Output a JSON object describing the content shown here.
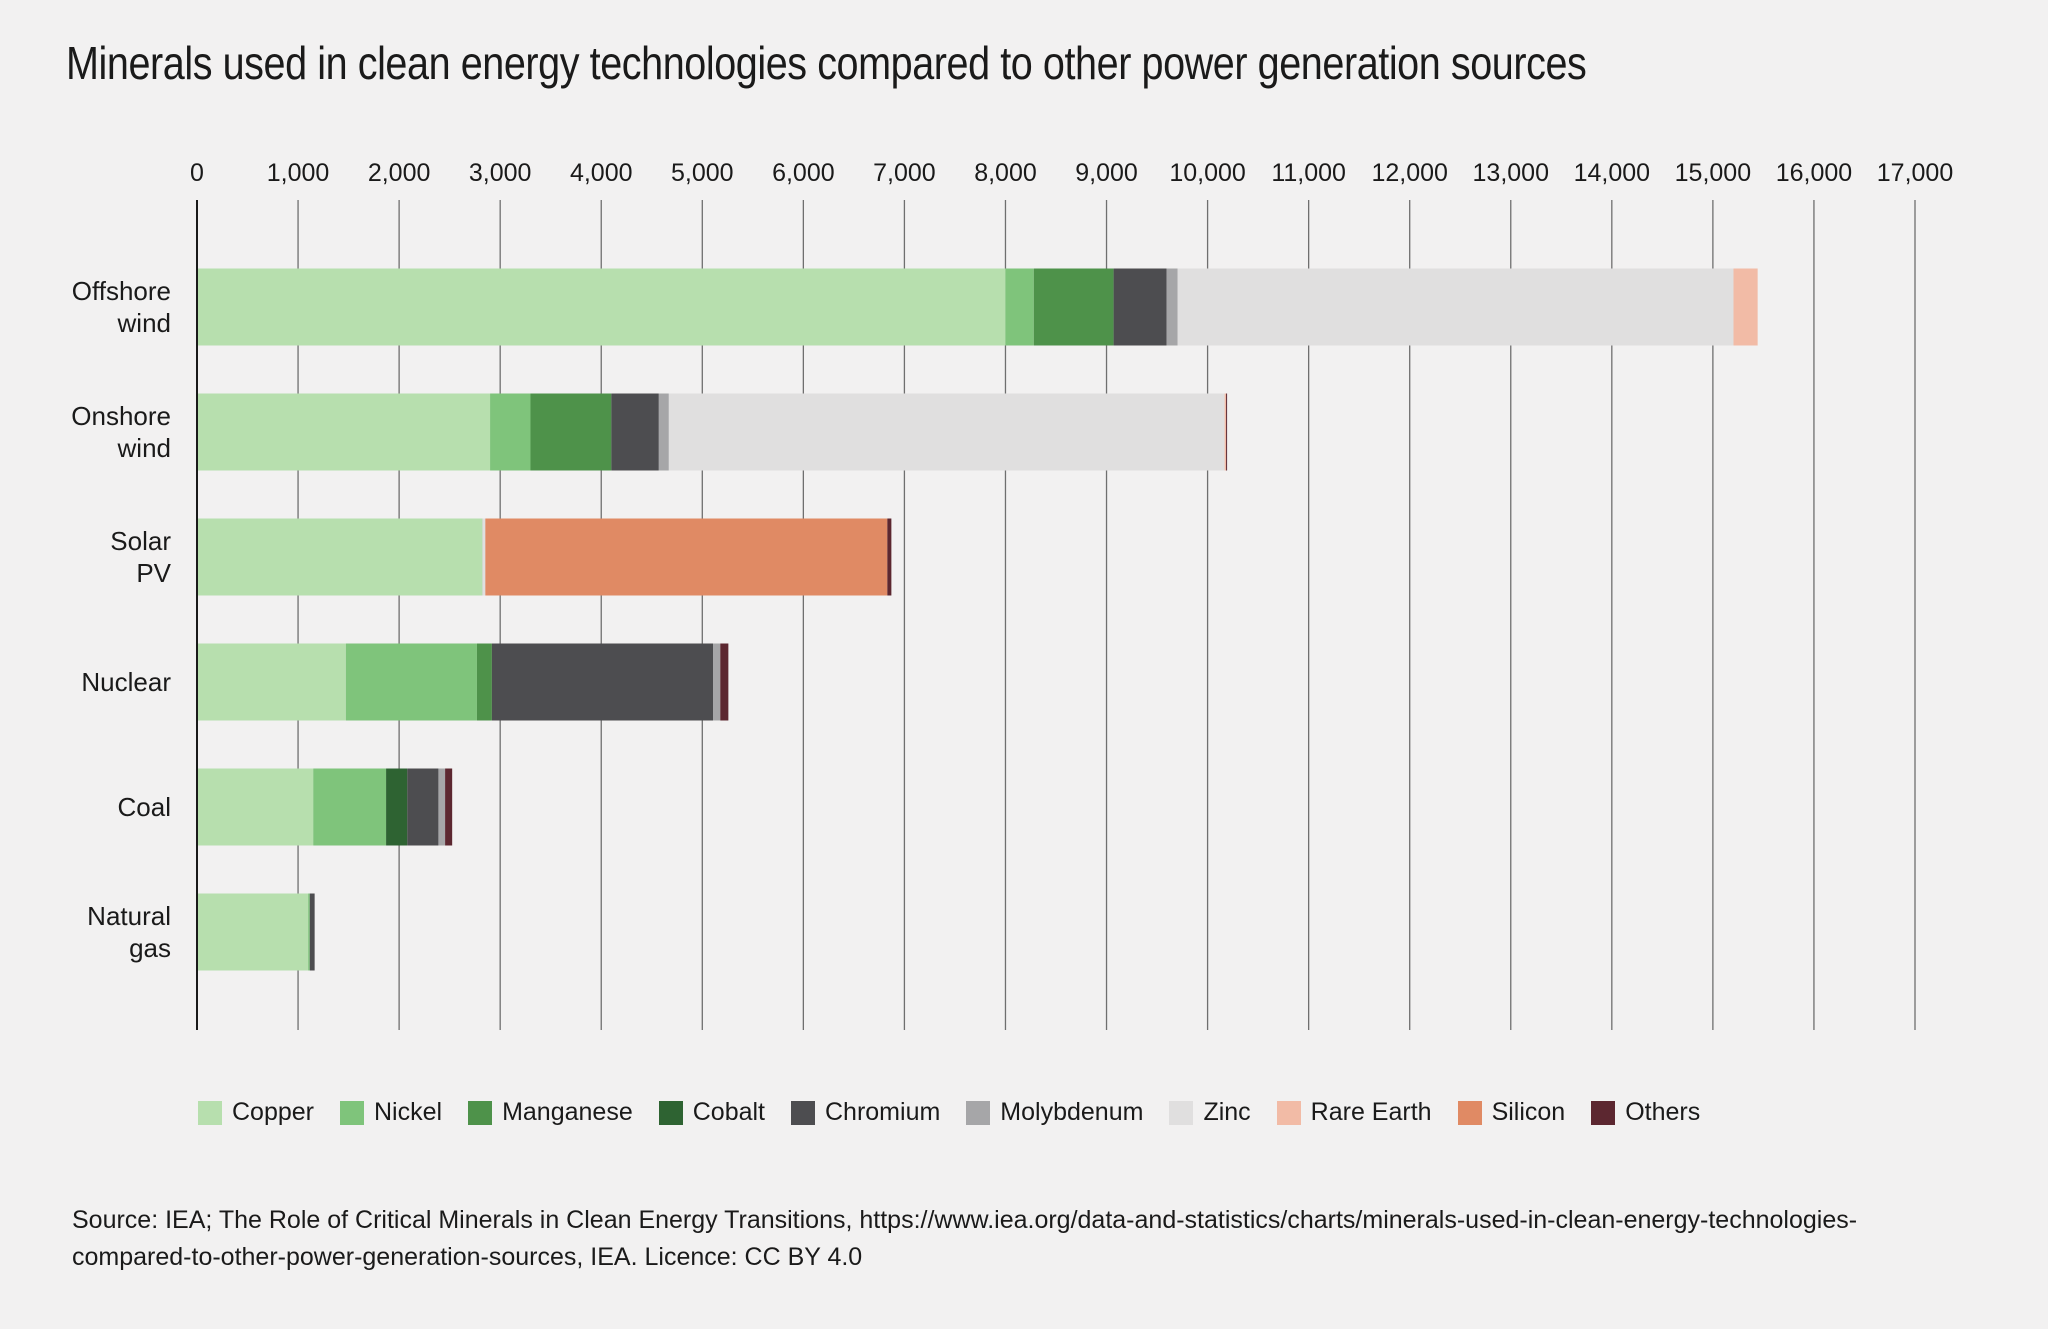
{
  "chart_data": {
    "type": "bar",
    "orientation": "horizontal",
    "stacked": true,
    "title": "Minerals used in clean energy technologies compared to other power generation sources",
    "xlim": [
      0,
      17000
    ],
    "x_ticks": [
      "0",
      "1,000",
      "2,000",
      "3,000",
      "4,000",
      "5,000",
      "6,000",
      "7,000",
      "8,000",
      "9,000",
      "10,000",
      "11,000",
      "12,000",
      "13,000",
      "14,000",
      "15,000",
      "16,000",
      "17,000"
    ],
    "x_tick_values": [
      0,
      1000,
      2000,
      3000,
      4000,
      5000,
      6000,
      7000,
      8000,
      9000,
      10000,
      11000,
      12000,
      13000,
      14000,
      15000,
      16000,
      17000
    ],
    "grid": "vertical",
    "legend_position": "bottom",
    "categories": [
      [
        "Offshore",
        "wind"
      ],
      [
        "Onshore",
        "wind"
      ],
      [
        "Solar",
        "PV"
      ],
      [
        "Nuclear"
      ],
      [
        "Coal"
      ],
      [
        "Natural",
        "gas"
      ]
    ],
    "series": [
      {
        "name": "Copper",
        "color": "#b7dfae",
        "values": [
          8000,
          2900,
          2822,
          1473,
          1150,
          1100
        ]
      },
      {
        "name": "Nickel",
        "color": "#7fc47b",
        "values": [
          280,
          400,
          1,
          1297,
          721,
          16
        ]
      },
      {
        "name": "Manganese",
        "color": "#4e924a",
        "values": [
          790,
          800,
          0,
          148,
          0,
          0
        ]
      },
      {
        "name": "Cobalt",
        "color": "#2e6332",
        "values": [
          0,
          0,
          0,
          0,
          210,
          0
        ]
      },
      {
        "name": "Chromium",
        "color": "#4d4d50",
        "values": [
          525,
          470,
          0,
          2190,
          308,
          48
        ]
      },
      {
        "name": "Molybdenum",
        "color": "#a6a6a8",
        "values": [
          109,
          99,
          0,
          70,
          66,
          0
        ]
      },
      {
        "name": "Zinc",
        "color": "#e0dfdf",
        "values": [
          5500,
          5500,
          30,
          0,
          0,
          0
        ]
      },
      {
        "name": "Rare Earth",
        "color": "#f2bba6",
        "values": [
          239,
          14,
          0,
          0,
          0,
          0
        ]
      },
      {
        "name": "Silicon",
        "color": "#e08a64",
        "values": [
          0,
          0,
          3978,
          0,
          0,
          0
        ]
      },
      {
        "name": "Others",
        "color": "#5c2730",
        "values": [
          0,
          10,
          40,
          80,
          70,
          0
        ]
      }
    ]
  },
  "source_text": "Source: IEA; The Role of Critical Minerals in Clean Energy Transitions, https://www.iea.org/data-and-statistics/charts/minerals-used-in-clean-energy-technologies-compared-to-other-power-generation-sources, IEA. Licence: CC BY 4.0"
}
